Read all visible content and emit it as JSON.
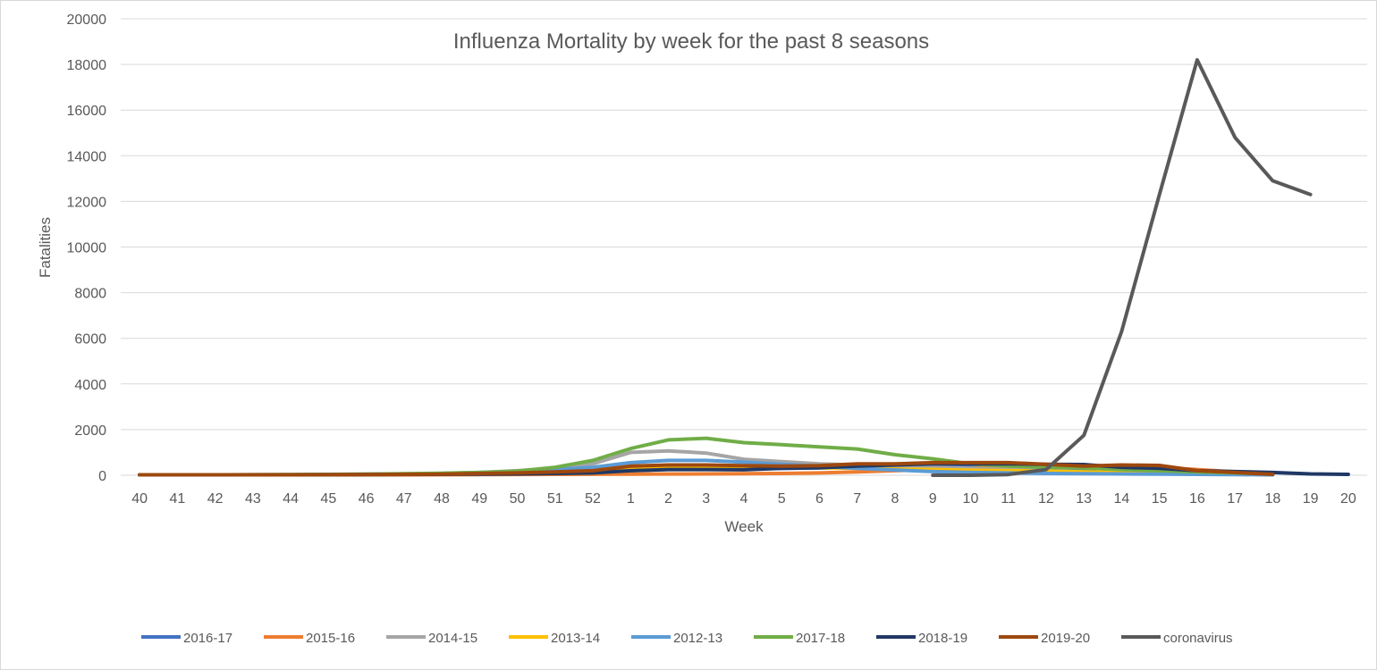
{
  "chart_data": {
    "type": "line",
    "title": "Influenza Mortality by week for the past 8 seasons",
    "xlabel": "Week",
    "ylabel": "Fatalities",
    "ylim": [
      0,
      20000
    ],
    "yticks": [
      0,
      2000,
      4000,
      6000,
      8000,
      10000,
      12000,
      14000,
      16000,
      18000,
      20000
    ],
    "grid": true,
    "legend_position": "bottom",
    "categories": [
      "40",
      "41",
      "42",
      "43",
      "44",
      "45",
      "46",
      "47",
      "48",
      "49",
      "50",
      "51",
      "52",
      "1",
      "2",
      "3",
      "4",
      "5",
      "6",
      "7",
      "8",
      "9",
      "10",
      "11",
      "12",
      "13",
      "14",
      "15",
      "16",
      "17",
      "18",
      "19",
      "20"
    ],
    "series": [
      {
        "name": "2016-17",
        "color": "#4472C4",
        "values": [
          20,
          20,
          20,
          20,
          20,
          25,
          30,
          35,
          40,
          60,
          80,
          100,
          130,
          200,
          260,
          280,
          280,
          300,
          320,
          350,
          380,
          380,
          370,
          350,
          300,
          250,
          200,
          150,
          100,
          80,
          null,
          null,
          null
        ]
      },
      {
        "name": "2015-16",
        "color": "#ED7D31",
        "values": [
          20,
          20,
          20,
          20,
          20,
          20,
          20,
          20,
          25,
          30,
          35,
          40,
          45,
          50,
          55,
          60,
          65,
          80,
          100,
          150,
          200,
          250,
          300,
          350,
          380,
          400,
          380,
          350,
          250,
          150,
          80,
          null,
          null
        ]
      },
      {
        "name": "2014-15",
        "color": "#A5A5A5",
        "values": [
          20,
          20,
          20,
          25,
          30,
          40,
          50,
          60,
          80,
          120,
          200,
          300,
          500,
          1000,
          1070,
          970,
          700,
          600,
          500,
          450,
          400,
          350,
          300,
          250,
          200,
          150,
          100,
          80,
          60,
          40,
          30,
          null,
          null
        ]
      },
      {
        "name": "2013-14",
        "color": "#FFC000",
        "values": [
          20,
          20,
          20,
          20,
          20,
          25,
          30,
          35,
          40,
          60,
          80,
          120,
          200,
          300,
          350,
          380,
          370,
          350,
          330,
          300,
          270,
          250,
          220,
          200,
          180,
          150,
          120,
          100,
          80,
          60,
          40,
          null,
          null
        ]
      },
      {
        "name": "2012-13",
        "color": "#5B9BD5",
        "values": [
          20,
          20,
          20,
          20,
          25,
          30,
          40,
          60,
          80,
          120,
          160,
          250,
          350,
          550,
          650,
          650,
          570,
          480,
          390,
          300,
          230,
          160,
          120,
          100,
          80,
          70,
          60,
          50,
          40,
          30,
          20,
          null,
          null
        ]
      },
      {
        "name": "2017-18",
        "color": "#70AD47",
        "values": [
          20,
          20,
          20,
          25,
          30,
          35,
          50,
          70,
          90,
          120,
          180,
          350,
          650,
          1170,
          1550,
          1620,
          1430,
          1340,
          1240,
          1150,
          900,
          720,
          500,
          400,
          350,
          320,
          250,
          200,
          150,
          100,
          60,
          null,
          null
        ]
      },
      {
        "name": "2018-19",
        "color": "#203864",
        "values": [
          20,
          20,
          20,
          20,
          20,
          25,
          30,
          35,
          40,
          50,
          60,
          80,
          100,
          200,
          250,
          250,
          240,
          300,
          330,
          400,
          450,
          500,
          500,
          500,
          480,
          470,
          350,
          300,
          200,
          160,
          120,
          60,
          40
        ]
      },
      {
        "name": "2019-20",
        "color": "#9E480E",
        "values": [
          20,
          20,
          20,
          20,
          20,
          25,
          30,
          40,
          50,
          80,
          100,
          150,
          200,
          400,
          450,
          450,
          420,
          400,
          420,
          500,
          500,
          550,
          550,
          550,
          480,
          400,
          450,
          430,
          200,
          120,
          40,
          null,
          null
        ]
      },
      {
        "name": "coronavirus",
        "color": "#595959",
        "values": [
          null,
          null,
          null,
          null,
          null,
          null,
          null,
          null,
          null,
          null,
          null,
          null,
          null,
          null,
          null,
          null,
          null,
          null,
          null,
          null,
          null,
          0,
          0,
          30,
          250,
          1750,
          6300,
          12300,
          18200,
          14800,
          12900,
          12300,
          null
        ]
      }
    ]
  }
}
